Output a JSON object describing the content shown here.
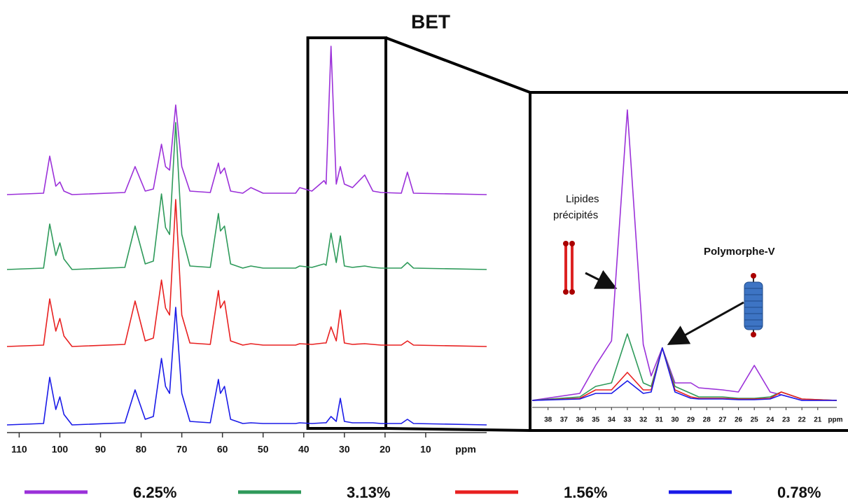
{
  "chart_data": [
    {
      "type": "line",
      "title": "BET",
      "xlabel": "ppm",
      "xlim": [
        113,
        -5
      ],
      "xticks": [
        110,
        100,
        90,
        80,
        70,
        60,
        50,
        40,
        30,
        20,
        10
      ],
      "x": [
        113,
        104,
        102.5,
        101,
        100,
        99,
        97,
        84,
        81.5,
        79,
        77,
        75,
        74,
        73,
        71.5,
        70,
        68,
        63,
        61,
        60.5,
        59.5,
        58,
        55,
        53,
        50,
        42,
        41,
        38,
        35,
        34.5,
        33.3,
        32,
        31,
        30,
        28,
        25,
        23,
        21,
        16,
        14.5,
        13,
        -5
      ],
      "series": [
        {
          "name": "6.25%",
          "color": "#9b30d9",
          "values": [
            0,
            2,
            55,
            12,
            18,
            5,
            0,
            3,
            40,
            5,
            8,
            72,
            40,
            35,
            128,
            40,
            5,
            3,
            45,
            30,
            38,
            5,
            2,
            10,
            2,
            2,
            10,
            5,
            20,
            15,
            212,
            15,
            40,
            15,
            10,
            28,
            5,
            3,
            2,
            32,
            2,
            0
          ]
        },
        {
          "name": "3.13%",
          "color": "#2e9a5a",
          "values": [
            0,
            2,
            65,
            20,
            38,
            15,
            0,
            3,
            62,
            8,
            12,
            108,
            60,
            50,
            210,
            50,
            5,
            3,
            80,
            55,
            62,
            8,
            2,
            5,
            2,
            2,
            5,
            3,
            8,
            6,
            52,
            10,
            48,
            5,
            3,
            5,
            3,
            2,
            2,
            10,
            2,
            0
          ]
        },
        {
          "name": "1.56%",
          "color": "#e82020",
          "values": [
            0,
            2,
            68,
            22,
            40,
            15,
            0,
            3,
            65,
            8,
            12,
            95,
            55,
            45,
            210,
            45,
            5,
            3,
            80,
            55,
            65,
            8,
            2,
            4,
            2,
            2,
            4,
            3,
            5,
            5,
            28,
            8,
            52,
            5,
            3,
            4,
            3,
            2,
            2,
            8,
            2,
            0
          ]
        },
        {
          "name": "0.78%",
          "color": "#1a1ae8",
          "values": [
            0,
            2,
            68,
            22,
            40,
            15,
            0,
            3,
            50,
            8,
            12,
            95,
            55,
            45,
            168,
            45,
            5,
            3,
            65,
            45,
            55,
            8,
            2,
            3,
            2,
            2,
            3,
            2,
            3,
            3,
            12,
            5,
            38,
            5,
            3,
            3,
            3,
            2,
            2,
            8,
            2,
            0
          ]
        }
      ]
    },
    {
      "type": "line",
      "xlabel": "ppm",
      "xlim": [
        39,
        19.8
      ],
      "xticks": [
        38,
        37,
        36,
        35,
        34,
        33,
        32,
        31,
        30,
        29,
        28,
        27,
        26,
        25,
        24,
        23,
        22,
        21
      ],
      "x": [
        39,
        36,
        35,
        34,
        33,
        32,
        31.5,
        30.8,
        30,
        29,
        28.5,
        27,
        26,
        25,
        24,
        23.3,
        22,
        19.8
      ],
      "annotations": [
        "Lipides",
        "précipités",
        "Polymorphe-V"
      ],
      "series": [
        {
          "color": "#9b30d9",
          "values": [
            0,
            10,
            50,
            85,
            415,
            80,
            35,
            75,
            25,
            25,
            18,
            15,
            12,
            50,
            12,
            8,
            0,
            0
          ]
        },
        {
          "color": "#2e9a5a",
          "values": [
            0,
            5,
            20,
            25,
            95,
            25,
            20,
            75,
            20,
            10,
            5,
            5,
            3,
            3,
            5,
            12,
            2,
            0
          ]
        },
        {
          "color": "#e82020",
          "values": [
            0,
            3,
            15,
            15,
            40,
            15,
            15,
            75,
            15,
            5,
            3,
            3,
            2,
            2,
            3,
            12,
            2,
            0
          ]
        },
        {
          "color": "#1a1ae8",
          "values": [
            0,
            2,
            10,
            10,
            28,
            10,
            12,
            75,
            12,
            3,
            2,
            2,
            1,
            1,
            2,
            8,
            0,
            0
          ]
        }
      ]
    }
  ]
}
